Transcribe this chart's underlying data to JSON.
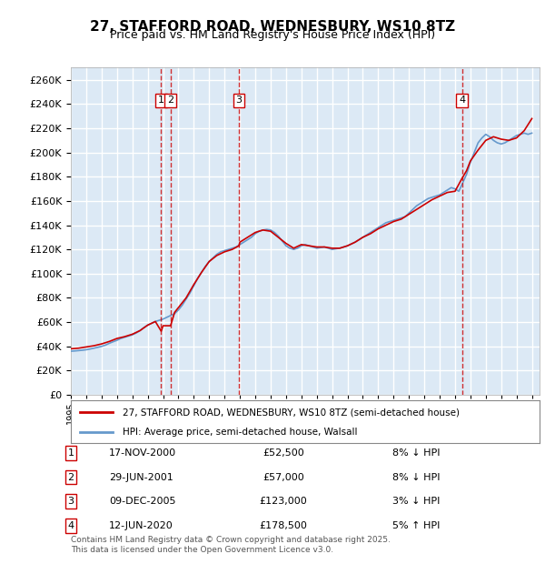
{
  "title": "27, STAFFORD ROAD, WEDNESBURY, WS10 8TZ",
  "subtitle": "Price paid vs. HM Land Registry's House Price Index (HPI)",
  "ylabel": "",
  "bg_color": "#dce9f5",
  "plot_bg": "#dce9f5",
  "grid_color": "#ffffff",
  "ylim": [
    0,
    270000
  ],
  "yticks": [
    0,
    20000,
    40000,
    60000,
    80000,
    100000,
    120000,
    140000,
    160000,
    180000,
    200000,
    220000,
    240000,
    260000
  ],
  "xlim_start": 1995.0,
  "xlim_end": 2025.5,
  "transactions": [
    {
      "num": 1,
      "date": "17-NOV-2000",
      "price": 52500,
      "pct": "8%",
      "dir": "↓",
      "year": 2000.88
    },
    {
      "num": 2,
      "date": "29-JUN-2001",
      "price": 57000,
      "pct": "8%",
      "dir": "↓",
      "year": 2001.49
    },
    {
      "num": 3,
      "date": "09-DEC-2005",
      "price": 123000,
      "pct": "3%",
      "dir": "↓",
      "year": 2005.94
    },
    {
      "num": 4,
      "date": "12-JUN-2020",
      "price": 178500,
      "pct": "5%",
      "dir": "↑",
      "year": 2020.45
    }
  ],
  "legend_property": "27, STAFFORD ROAD, WEDNESBURY, WS10 8TZ (semi-detached house)",
  "legend_hpi": "HPI: Average price, semi-detached house, Walsall",
  "footnote": "Contains HM Land Registry data © Crown copyright and database right 2025.\nThis data is licensed under the Open Government Licence v3.0.",
  "hpi_years": [
    1995.0,
    1995.25,
    1995.5,
    1995.75,
    1996.0,
    1996.25,
    1996.5,
    1996.75,
    1997.0,
    1997.25,
    1997.5,
    1997.75,
    1998.0,
    1998.25,
    1998.5,
    1998.75,
    1999.0,
    1999.25,
    1999.5,
    1999.75,
    2000.0,
    2000.25,
    2000.5,
    2000.75,
    2001.0,
    2001.25,
    2001.5,
    2001.75,
    2002.0,
    2002.25,
    2002.5,
    2002.75,
    2003.0,
    2003.25,
    2003.5,
    2003.75,
    2004.0,
    2004.25,
    2004.5,
    2004.75,
    2005.0,
    2005.25,
    2005.5,
    2005.75,
    2006.0,
    2006.25,
    2006.5,
    2006.75,
    2007.0,
    2007.25,
    2007.5,
    2007.75,
    2008.0,
    2008.25,
    2008.5,
    2008.75,
    2009.0,
    2009.25,
    2009.5,
    2009.75,
    2010.0,
    2010.25,
    2010.5,
    2010.75,
    2011.0,
    2011.25,
    2011.5,
    2011.75,
    2012.0,
    2012.25,
    2012.5,
    2012.75,
    2013.0,
    2013.25,
    2013.5,
    2013.75,
    2014.0,
    2014.25,
    2014.5,
    2014.75,
    2015.0,
    2015.25,
    2015.5,
    2015.75,
    2016.0,
    2016.25,
    2016.5,
    2016.75,
    2017.0,
    2017.25,
    2017.5,
    2017.75,
    2018.0,
    2018.25,
    2018.5,
    2018.75,
    2019.0,
    2019.25,
    2019.5,
    2019.75,
    2020.0,
    2020.25,
    2020.5,
    2020.75,
    2021.0,
    2021.25,
    2021.5,
    2021.75,
    2022.0,
    2022.25,
    2022.5,
    2022.75,
    2023.0,
    2023.25,
    2023.5,
    2023.75,
    2024.0,
    2024.25,
    2024.5,
    2024.75,
    2025.0
  ],
  "hpi_values": [
    36000,
    36200,
    36500,
    36800,
    37200,
    37800,
    38500,
    39200,
    40000,
    41000,
    42500,
    43800,
    45000,
    46500,
    47500,
    48500,
    49500,
    51000,
    53000,
    55500,
    57500,
    59000,
    60500,
    61500,
    62500,
    64000,
    65500,
    67000,
    70000,
    74000,
    79000,
    84000,
    90000,
    96000,
    101000,
    106000,
    110000,
    113000,
    116000,
    118000,
    119000,
    120000,
    121000,
    122000,
    124000,
    126000,
    128000,
    130000,
    133000,
    135000,
    136000,
    136500,
    136000,
    134000,
    131000,
    127000,
    123000,
    121000,
    120000,
    121000,
    123000,
    124000,
    123000,
    122000,
    121000,
    121500,
    122000,
    121000,
    120000,
    120500,
    121000,
    122000,
    123000,
    124500,
    126000,
    128000,
    130000,
    132000,
    134000,
    136000,
    138000,
    140000,
    142000,
    143000,
    144000,
    145000,
    146000,
    147000,
    150000,
    153000,
    156000,
    158000,
    160000,
    162000,
    163000,
    164000,
    165000,
    167000,
    169000,
    171000,
    170000,
    168000,
    175000,
    182000,
    192000,
    200000,
    208000,
    212000,
    215000,
    213000,
    210000,
    208000,
    207000,
    208000,
    210000,
    212000,
    214000,
    215000,
    216000,
    215000,
    216000
  ],
  "property_years": [
    1995.0,
    1995.5,
    1996.0,
    1996.5,
    1997.0,
    1997.5,
    1998.0,
    1998.5,
    1999.0,
    1999.5,
    2000.0,
    2000.5,
    2000.88,
    2001.0,
    2001.49,
    2001.75,
    2002.0,
    2002.5,
    2003.0,
    2003.5,
    2004.0,
    2004.5,
    2005.0,
    2005.5,
    2005.94,
    2006.0,
    2006.5,
    2007.0,
    2007.5,
    2008.0,
    2008.5,
    2009.0,
    2009.5,
    2010.0,
    2010.5,
    2011.0,
    2011.5,
    2012.0,
    2012.5,
    2013.0,
    2013.5,
    2014.0,
    2014.5,
    2015.0,
    2015.5,
    2016.0,
    2016.5,
    2017.0,
    2017.5,
    2018.0,
    2018.5,
    2019.0,
    2019.5,
    2020.0,
    2020.45,
    2020.75,
    2021.0,
    2021.5,
    2022.0,
    2022.5,
    2023.0,
    2023.5,
    2024.0,
    2024.5,
    2025.0
  ],
  "property_values": [
    38000,
    38500,
    39500,
    40500,
    42000,
    44000,
    46500,
    48000,
    50000,
    53000,
    57500,
    60500,
    52500,
    57000,
    57000,
    68000,
    72000,
    80000,
    91000,
    101000,
    110000,
    115000,
    118000,
    120000,
    123000,
    126000,
    130000,
    134000,
    136000,
    135000,
    130000,
    125000,
    121000,
    124000,
    123000,
    122000,
    122000,
    121000,
    121000,
    123000,
    126000,
    130000,
    133000,
    137000,
    140000,
    143000,
    145000,
    149000,
    153000,
    157000,
    161000,
    164000,
    167000,
    168000,
    178500,
    185000,
    193000,
    202000,
    210000,
    213000,
    211000,
    210000,
    212000,
    218000,
    228000
  ]
}
